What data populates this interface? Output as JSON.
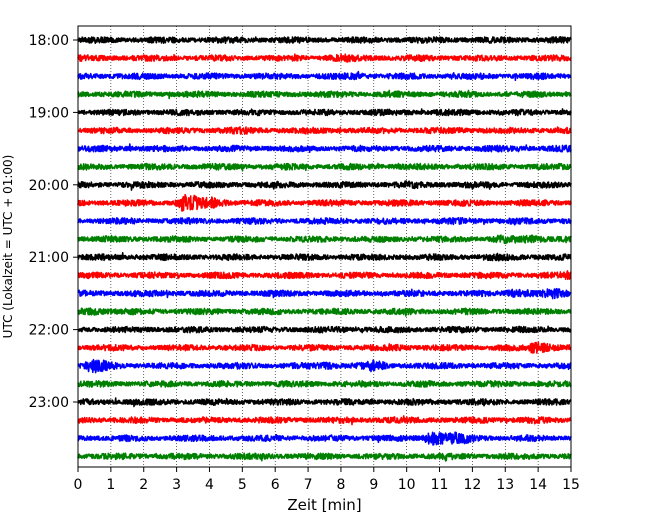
{
  "chart_data": {
    "type": "line",
    "title": "",
    "xlabel": "Zeit  [min]",
    "ylabel": "UTC (Lokalzeit = UTC + 01:00)",
    "xlim": [
      0,
      15
    ],
    "x_ticks": [
      0,
      1,
      2,
      3,
      4,
      5,
      6,
      7,
      8,
      9,
      10,
      11,
      12,
      13,
      14,
      15
    ],
    "y_tick_labels": [
      "18:00",
      "19:00",
      "20:00",
      "21:00",
      "22:00",
      "23:00"
    ],
    "grid": "vertical dotted",
    "trace_minutes": 15,
    "trace_colors": [
      "#000000",
      "#ff0000",
      "#0000ff",
      "#008000"
    ],
    "traces": [
      {
        "start": "18:00",
        "color": "#000000",
        "events": []
      },
      {
        "start": "18:15",
        "color": "#ff0000",
        "events": [
          {
            "t": 7.7,
            "amp": 1.6
          }
        ]
      },
      {
        "start": "18:30",
        "color": "#0000ff",
        "events": [
          {
            "t": 8.5,
            "amp": 1.3
          }
        ]
      },
      {
        "start": "18:45",
        "color": "#008000",
        "events": [
          {
            "t": 6.5,
            "amp": 1.2
          }
        ]
      },
      {
        "start": "19:00",
        "color": "#000000",
        "events": []
      },
      {
        "start": "19:15",
        "color": "#ff0000",
        "events": [
          {
            "t": 4.8,
            "amp": 1.2
          }
        ]
      },
      {
        "start": "19:30",
        "color": "#0000ff",
        "events": [
          {
            "t": 1.5,
            "amp": 1.2
          }
        ]
      },
      {
        "start": "19:45",
        "color": "#008000",
        "events": []
      },
      {
        "start": "20:00",
        "color": "#000000",
        "events": [
          {
            "t": 10.0,
            "amp": 1.2
          }
        ]
      },
      {
        "start": "20:15",
        "color": "#ff0000",
        "events": [
          {
            "t": 3.2,
            "amp": 3.2
          },
          {
            "t": 4.0,
            "amp": 2.0
          }
        ]
      },
      {
        "start": "20:30",
        "color": "#0000ff",
        "events": [
          {
            "t": 11.5,
            "amp": 1.1
          }
        ]
      },
      {
        "start": "20:45",
        "color": "#008000",
        "events": [
          {
            "t": 12.8,
            "amp": 1.6
          },
          {
            "t": 13.8,
            "amp": 1.7
          }
        ]
      },
      {
        "start": "21:00",
        "color": "#000000",
        "events": [
          {
            "t": 12.5,
            "amp": 1.3
          }
        ]
      },
      {
        "start": "21:15",
        "color": "#ff0000",
        "events": [
          {
            "t": 14.9,
            "amp": 1.6
          }
        ]
      },
      {
        "start": "21:30",
        "color": "#0000ff",
        "events": [
          {
            "t": 13.2,
            "amp": 2.0
          },
          {
            "t": 14.4,
            "amp": 1.8
          }
        ]
      },
      {
        "start": "21:45",
        "color": "#008000",
        "events": [
          {
            "t": 0.3,
            "amp": 1.8
          }
        ]
      },
      {
        "start": "22:00",
        "color": "#000000",
        "events": []
      },
      {
        "start": "22:15",
        "color": "#ff0000",
        "events": [
          {
            "t": 9.5,
            "amp": 1.3
          },
          {
            "t": 13.9,
            "amp": 2.8
          }
        ]
      },
      {
        "start": "22:30",
        "color": "#0000ff",
        "events": [
          {
            "t": 0.4,
            "amp": 2.4
          },
          {
            "t": 7.5,
            "amp": 1.6
          },
          {
            "t": 8.9,
            "amp": 1.8
          }
        ]
      },
      {
        "start": "22:45",
        "color": "#008000",
        "events": []
      },
      {
        "start": "23:00",
        "color": "#000000",
        "events": []
      },
      {
        "start": "23:15",
        "color": "#ff0000",
        "events": [
          {
            "t": 9.2,
            "amp": 1.1
          }
        ]
      },
      {
        "start": "23:30",
        "color": "#0000ff",
        "events": [
          {
            "t": 10.7,
            "amp": 3.4
          },
          {
            "t": 11.5,
            "amp": 2.0
          }
        ]
      },
      {
        "start": "23:45",
        "color": "#008000",
        "events": []
      }
    ]
  }
}
